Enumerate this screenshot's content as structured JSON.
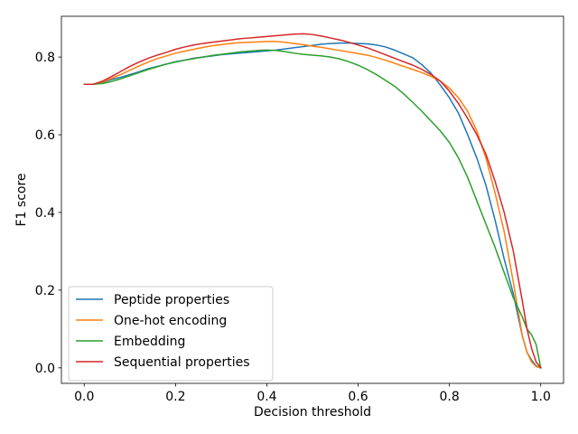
{
  "chart_data": {
    "type": "line",
    "title": "",
    "xlabel": "Decision threshold",
    "ylabel": "F1 score",
    "xlim": [
      -0.05,
      1.05
    ],
    "ylim": [
      -0.04,
      0.905
    ],
    "xticks": [
      0.0,
      0.2,
      0.4,
      0.6,
      0.8,
      1.0
    ],
    "xtick_labels": [
      "0.0",
      "0.2",
      "0.4",
      "0.6",
      "0.8",
      "1.0"
    ],
    "yticks": [
      0.0,
      0.2,
      0.4,
      0.6,
      0.8
    ],
    "ytick_labels": [
      "0.0",
      "0.2",
      "0.4",
      "0.6",
      "0.8"
    ],
    "grid": false,
    "legend_position": "bottom-left",
    "series": [
      {
        "name": "Peptide properties",
        "color": "#1f77b4",
        "x": [
          0.0,
          0.02,
          0.04,
          0.06,
          0.08,
          0.1,
          0.12,
          0.14,
          0.16,
          0.18,
          0.2,
          0.22,
          0.24,
          0.26,
          0.28,
          0.3,
          0.32,
          0.34,
          0.36,
          0.38,
          0.4,
          0.42,
          0.44,
          0.46,
          0.48,
          0.5,
          0.52,
          0.54,
          0.56,
          0.58,
          0.6,
          0.62,
          0.64,
          0.66,
          0.68,
          0.7,
          0.72,
          0.74,
          0.76,
          0.78,
          0.8,
          0.82,
          0.84,
          0.86,
          0.88,
          0.9,
          0.92,
          0.94,
          0.96,
          0.97,
          0.98,
          0.99,
          1.0
        ],
        "y": [
          0.73,
          0.73,
          0.735,
          0.742,
          0.748,
          0.755,
          0.762,
          0.77,
          0.776,
          0.782,
          0.788,
          0.792,
          0.797,
          0.8,
          0.803,
          0.806,
          0.808,
          0.81,
          0.812,
          0.814,
          0.816,
          0.818,
          0.821,
          0.824,
          0.827,
          0.83,
          0.833,
          0.835,
          0.836,
          0.836,
          0.835,
          0.834,
          0.831,
          0.826,
          0.818,
          0.808,
          0.798,
          0.78,
          0.758,
          0.728,
          0.695,
          0.655,
          0.6,
          0.54,
          0.47,
          0.38,
          0.28,
          0.19,
          0.08,
          0.04,
          0.02,
          0.005,
          0.0
        ]
      },
      {
        "name": "One-hot encoding",
        "color": "#ff7f0e",
        "x": [
          0.0,
          0.02,
          0.04,
          0.06,
          0.08,
          0.1,
          0.12,
          0.14,
          0.16,
          0.18,
          0.2,
          0.22,
          0.24,
          0.26,
          0.28,
          0.3,
          0.32,
          0.34,
          0.36,
          0.38,
          0.4,
          0.42,
          0.44,
          0.46,
          0.48,
          0.5,
          0.52,
          0.54,
          0.56,
          0.58,
          0.6,
          0.62,
          0.64,
          0.66,
          0.68,
          0.7,
          0.72,
          0.74,
          0.76,
          0.78,
          0.8,
          0.82,
          0.84,
          0.86,
          0.88,
          0.9,
          0.92,
          0.94,
          0.96,
          0.97,
          0.98,
          0.99,
          1.0
        ],
        "y": [
          0.73,
          0.73,
          0.736,
          0.745,
          0.755,
          0.766,
          0.777,
          0.787,
          0.796,
          0.803,
          0.81,
          0.815,
          0.82,
          0.825,
          0.829,
          0.832,
          0.835,
          0.837,
          0.838,
          0.839,
          0.84,
          0.84,
          0.838,
          0.835,
          0.832,
          0.828,
          0.825,
          0.821,
          0.817,
          0.813,
          0.809,
          0.805,
          0.799,
          0.792,
          0.784,
          0.776,
          0.768,
          0.76,
          0.75,
          0.738,
          0.72,
          0.695,
          0.66,
          0.61,
          0.54,
          0.45,
          0.35,
          0.22,
          0.08,
          0.04,
          0.015,
          0.003,
          0.0
        ]
      },
      {
        "name": "Embedding",
        "color": "#2ca02c",
        "x": [
          0.0,
          0.02,
          0.04,
          0.06,
          0.08,
          0.1,
          0.12,
          0.14,
          0.16,
          0.18,
          0.2,
          0.22,
          0.24,
          0.26,
          0.28,
          0.3,
          0.32,
          0.34,
          0.36,
          0.38,
          0.4,
          0.42,
          0.44,
          0.46,
          0.48,
          0.5,
          0.52,
          0.54,
          0.56,
          0.58,
          0.6,
          0.62,
          0.64,
          0.66,
          0.68,
          0.7,
          0.72,
          0.74,
          0.76,
          0.78,
          0.8,
          0.82,
          0.84,
          0.86,
          0.88,
          0.9,
          0.92,
          0.94,
          0.96,
          0.97,
          0.98,
          0.99,
          1.0
        ],
        "y": [
          0.73,
          0.73,
          0.732,
          0.737,
          0.744,
          0.752,
          0.76,
          0.768,
          0.775,
          0.782,
          0.787,
          0.792,
          0.796,
          0.8,
          0.804,
          0.807,
          0.81,
          0.813,
          0.815,
          0.817,
          0.818,
          0.817,
          0.814,
          0.81,
          0.807,
          0.805,
          0.803,
          0.8,
          0.795,
          0.788,
          0.779,
          0.768,
          0.755,
          0.74,
          0.725,
          0.705,
          0.683,
          0.66,
          0.635,
          0.61,
          0.58,
          0.54,
          0.49,
          0.43,
          0.37,
          0.31,
          0.245,
          0.18,
          0.13,
          0.1,
          0.085,
          0.06,
          0.0
        ]
      },
      {
        "name": "Sequential properties",
        "color": "#d62728",
        "x": [
          0.0,
          0.02,
          0.04,
          0.06,
          0.08,
          0.1,
          0.12,
          0.14,
          0.16,
          0.18,
          0.2,
          0.22,
          0.24,
          0.26,
          0.28,
          0.3,
          0.32,
          0.34,
          0.36,
          0.38,
          0.4,
          0.42,
          0.44,
          0.46,
          0.48,
          0.5,
          0.52,
          0.54,
          0.56,
          0.58,
          0.6,
          0.62,
          0.64,
          0.66,
          0.68,
          0.7,
          0.72,
          0.74,
          0.76,
          0.78,
          0.8,
          0.82,
          0.84,
          0.86,
          0.88,
          0.9,
          0.92,
          0.94,
          0.96,
          0.97,
          0.98,
          0.99,
          1.0
        ],
        "y": [
          0.73,
          0.73,
          0.738,
          0.75,
          0.763,
          0.776,
          0.787,
          0.797,
          0.805,
          0.812,
          0.82,
          0.826,
          0.831,
          0.835,
          0.838,
          0.841,
          0.844,
          0.847,
          0.849,
          0.851,
          0.853,
          0.855,
          0.857,
          0.859,
          0.86,
          0.858,
          0.854,
          0.849,
          0.844,
          0.838,
          0.831,
          0.824,
          0.815,
          0.806,
          0.797,
          0.788,
          0.779,
          0.768,
          0.755,
          0.738,
          0.712,
          0.68,
          0.642,
          0.6,
          0.55,
          0.48,
          0.4,
          0.3,
          0.17,
          0.1,
          0.05,
          0.015,
          0.0
        ]
      }
    ]
  }
}
